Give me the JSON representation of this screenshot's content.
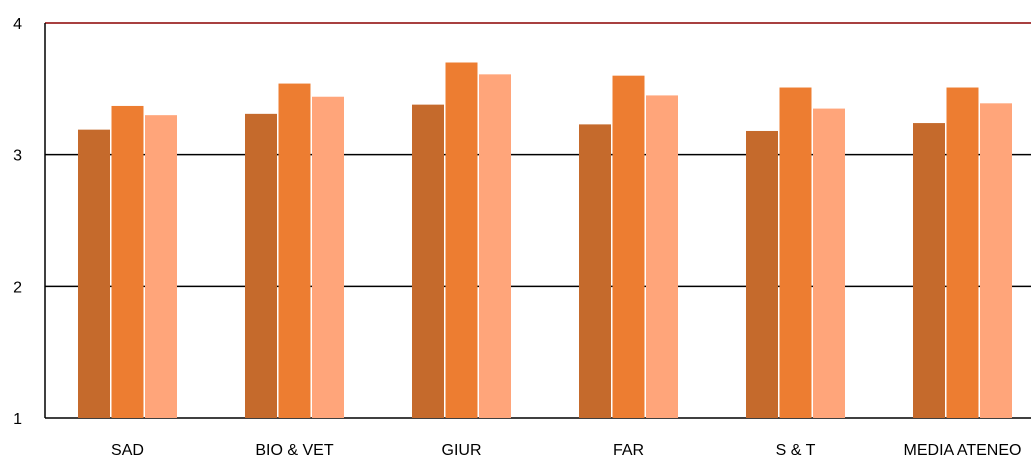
{
  "chart_data": {
    "type": "bar",
    "categories": [
      "SAD",
      "BIO & VET",
      "GIUR",
      "FAR",
      "S & T",
      "MEDIA ATENEO"
    ],
    "series": [
      {
        "values": [
          3.19,
          3.31,
          3.38,
          3.23,
          3.18,
          3.24
        ]
      },
      {
        "values": [
          3.37,
          3.54,
          3.7,
          3.6,
          3.51,
          3.51
        ]
      },
      {
        "values": [
          3.3,
          3.44,
          3.61,
          3.45,
          3.35,
          3.39
        ]
      }
    ],
    "colors": [
      "#C56A2C",
      "#ED7D31",
      "#FFA57A"
    ],
    "top_line_color": "#8B0000",
    "ylim": [
      1,
      4
    ],
    "yticks": [
      "1",
      "2",
      "3",
      "4"
    ],
    "grid": true,
    "title": "",
    "xlabel": "",
    "ylabel": ""
  }
}
